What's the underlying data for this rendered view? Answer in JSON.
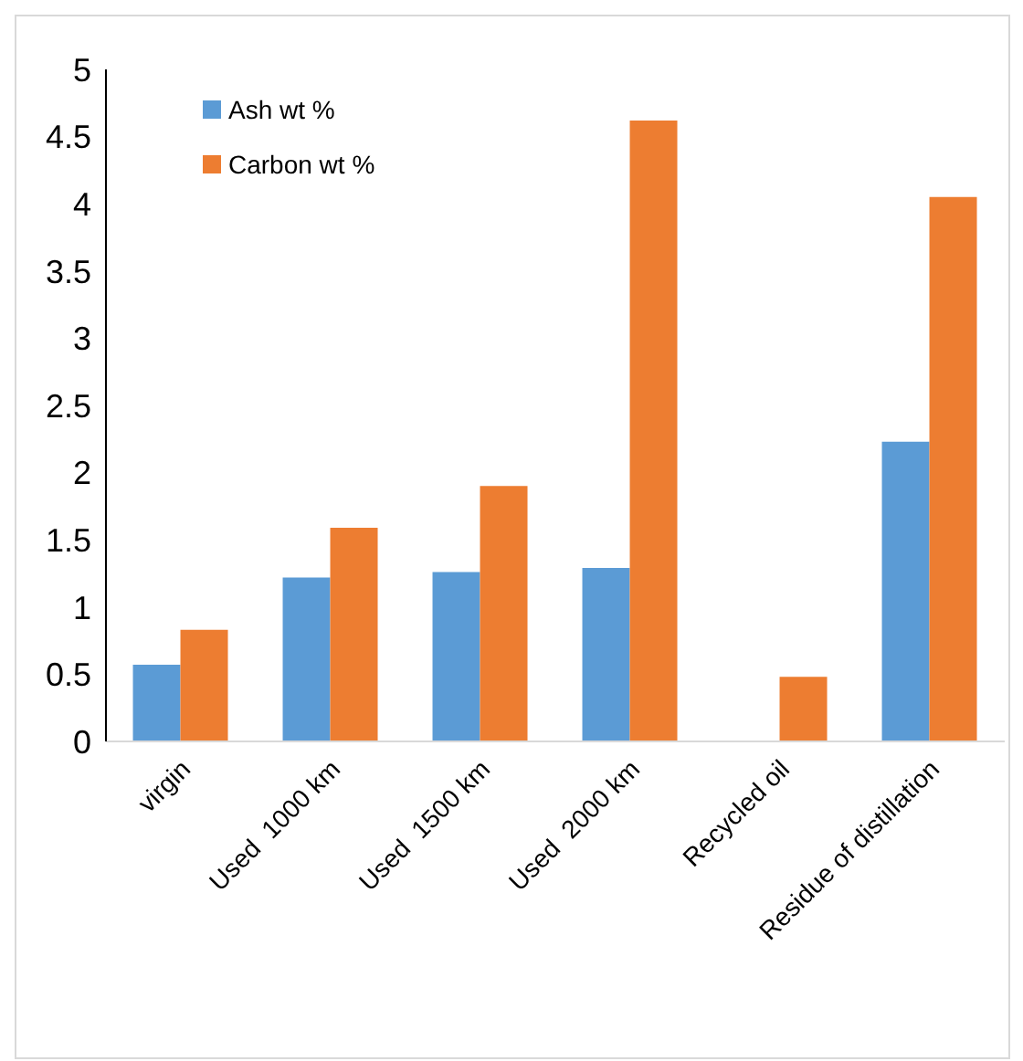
{
  "chart_data": {
    "type": "bar",
    "categories": [
      "virgin",
      "Used  1000 km",
      "Used  1500 km",
      "Used  2000 km",
      "Recycled oil",
      "Residue of distillation"
    ],
    "series": [
      {
        "name": "Ash wt %",
        "color": "#5b9bd5",
        "values": [
          0.57,
          1.22,
          1.26,
          1.29,
          null,
          2.23
        ]
      },
      {
        "name": "Carbon wt %",
        "color": "#ed7d31",
        "values": [
          0.83,
          1.59,
          1.9,
          4.62,
          0.48,
          4.05
        ]
      }
    ],
    "ylim": [
      0,
      5
    ],
    "yticks": [
      0,
      0.5,
      1,
      1.5,
      2,
      2.5,
      3,
      3.5,
      4,
      4.5,
      5
    ],
    "legend": "top left"
  }
}
